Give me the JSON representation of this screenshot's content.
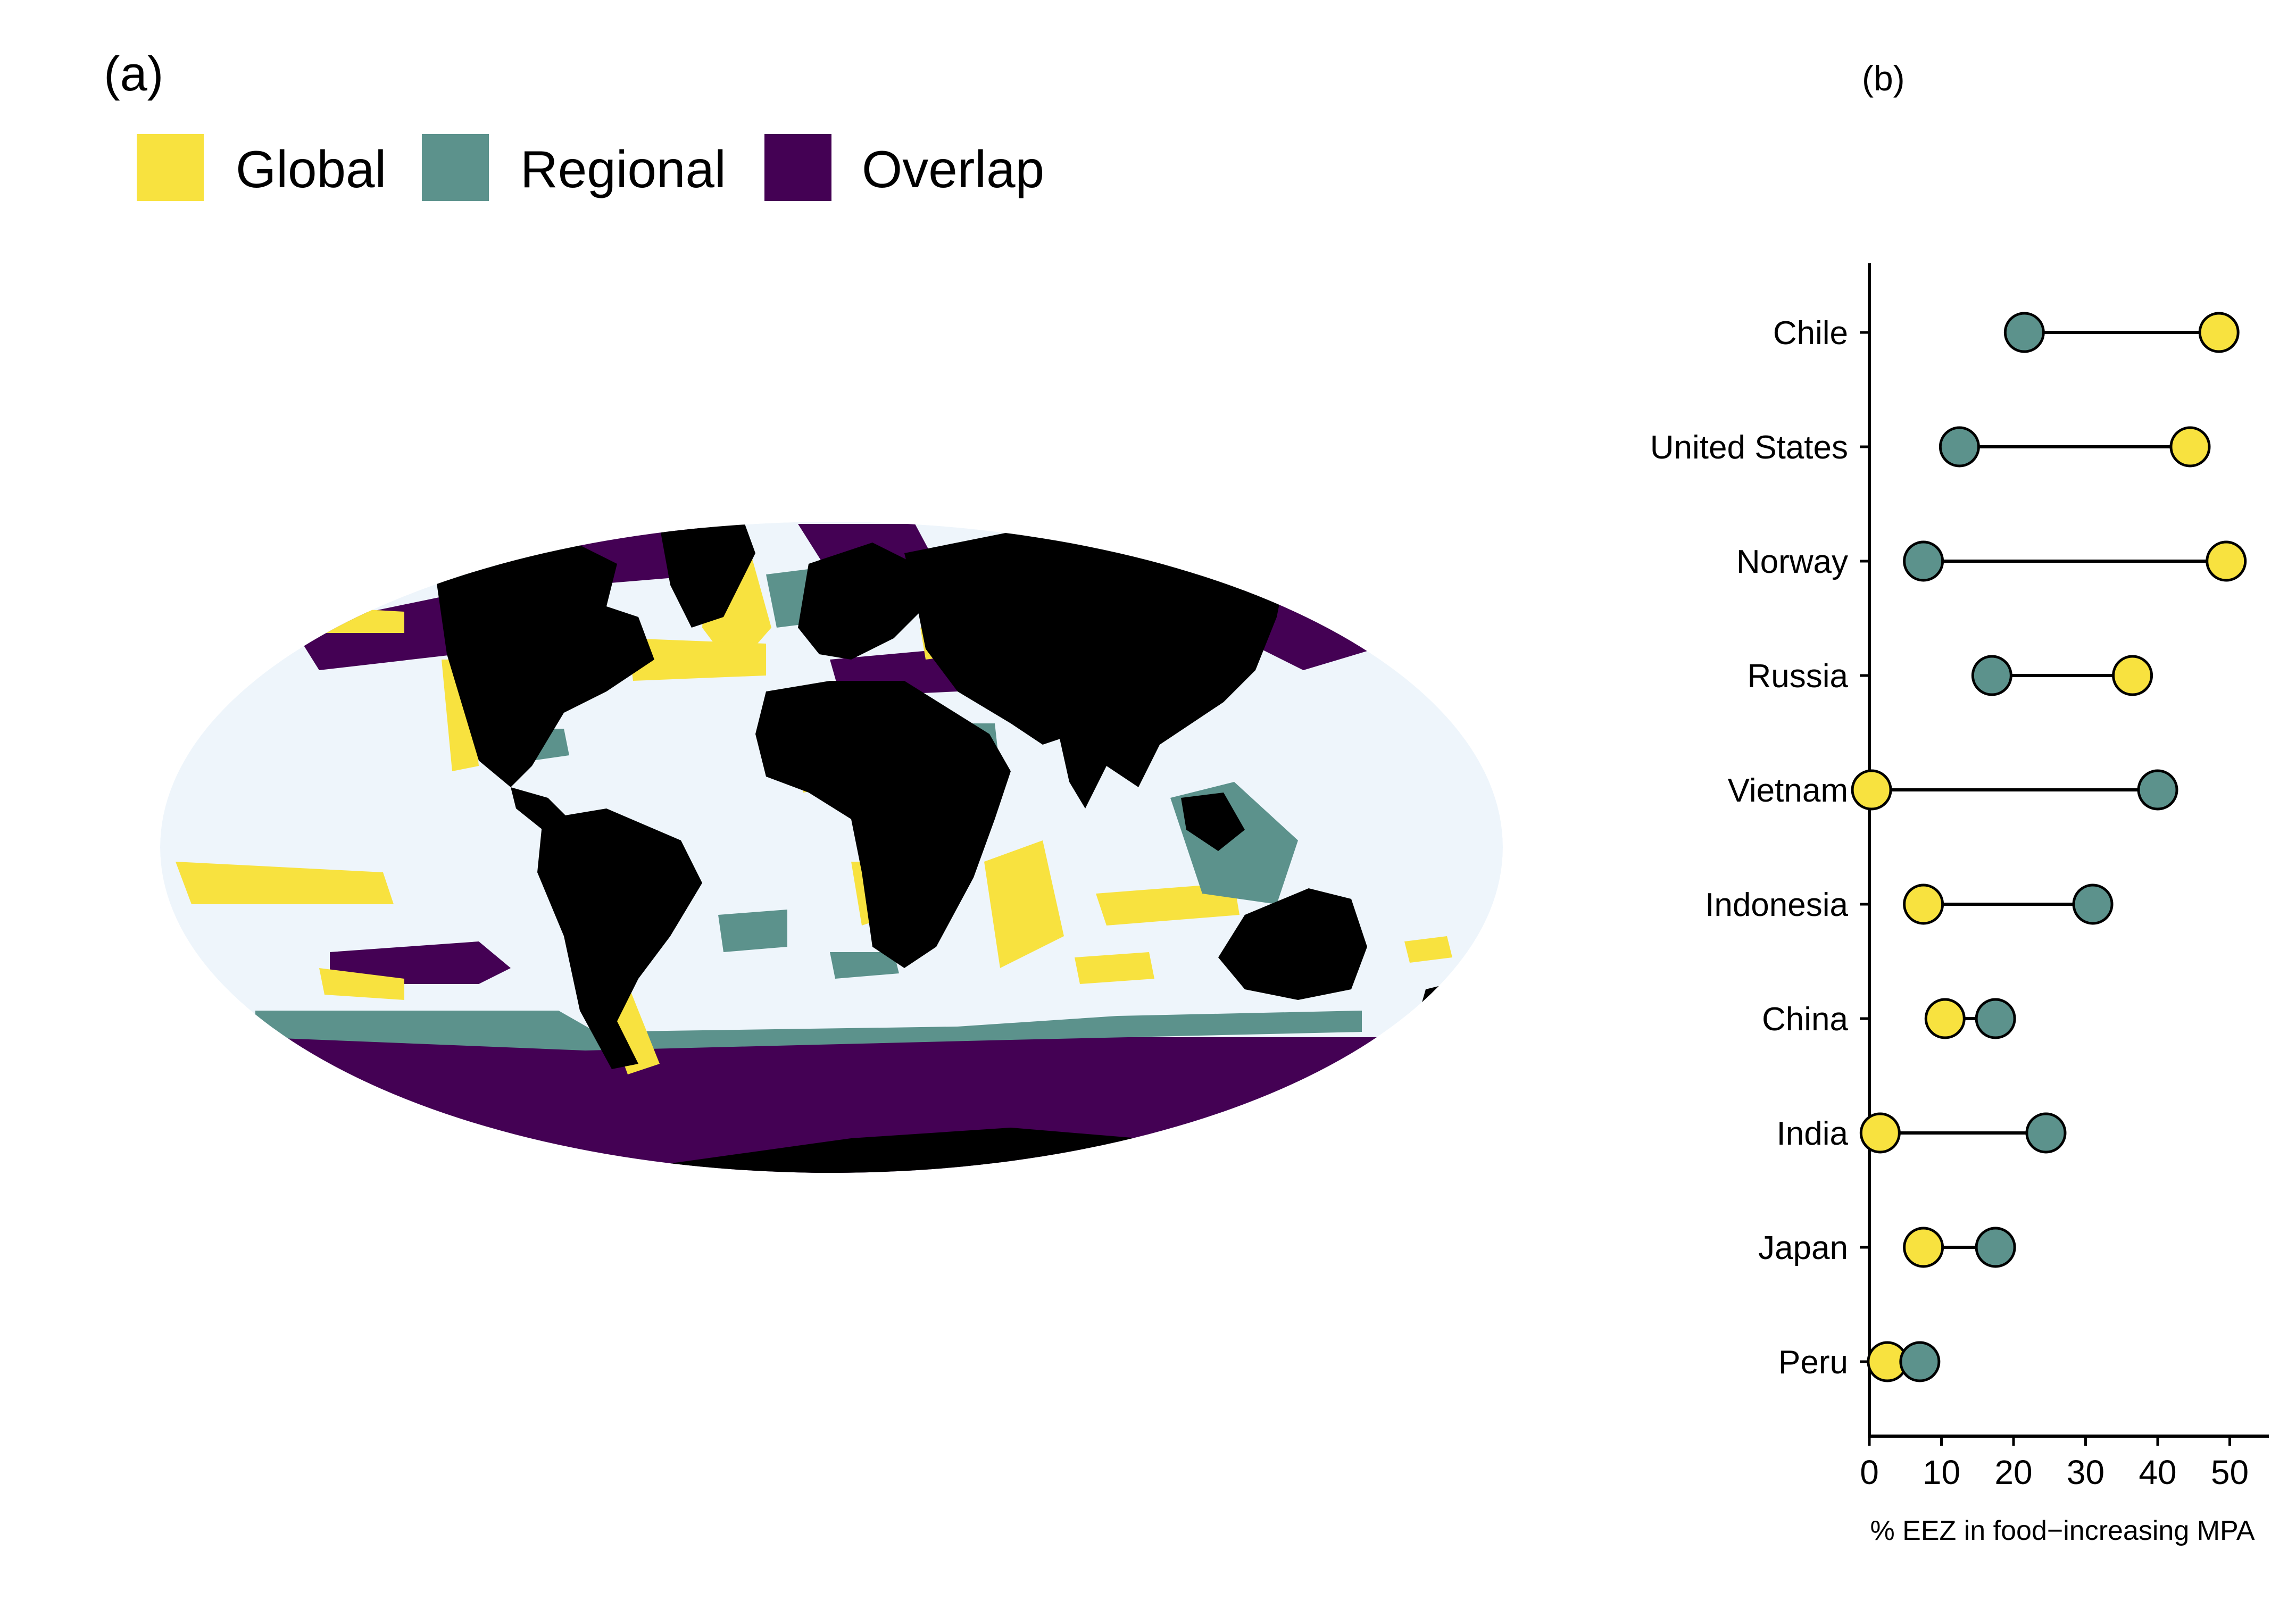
{
  "panels": {
    "a_label": "(a)",
    "b_label": "(b)"
  },
  "legend": {
    "items": [
      {
        "label": "Global",
        "color": "#F8E23F"
      },
      {
        "label": "Regional",
        "color": "#5C928C"
      },
      {
        "label": "Overlap",
        "color": "#440154"
      }
    ]
  },
  "map": {
    "ocean_color": "#EEF5FB",
    "land_color": "#000000",
    "global_color": "#F8E23F",
    "regional_color": "#5C928C",
    "overlap_color": "#440154"
  },
  "chart_data": {
    "type": "dumbbell",
    "categories": [
      "Chile",
      "United States",
      "Norway",
      "Russia",
      "Vietnam",
      "Indonesia",
      "China",
      "India",
      "Japan",
      "Peru"
    ],
    "series": [
      {
        "key": "global",
        "color": "#F8E23F",
        "values": [
          48.5,
          44.5,
          49.5,
          36.5,
          0.3,
          7.5,
          10.5,
          1.5,
          7.5,
          2.5
        ]
      },
      {
        "key": "regional",
        "color": "#5C928C",
        "values": [
          21.5,
          12.5,
          7.5,
          17.0,
          40.0,
          31.0,
          17.5,
          24.5,
          17.5,
          7.0
        ]
      }
    ],
    "xticks": [
      0,
      10,
      20,
      30,
      40,
      50
    ],
    "xlim": [
      0,
      55
    ],
    "xlabel": "% EEZ in food−increasing MPA",
    "title": ""
  }
}
